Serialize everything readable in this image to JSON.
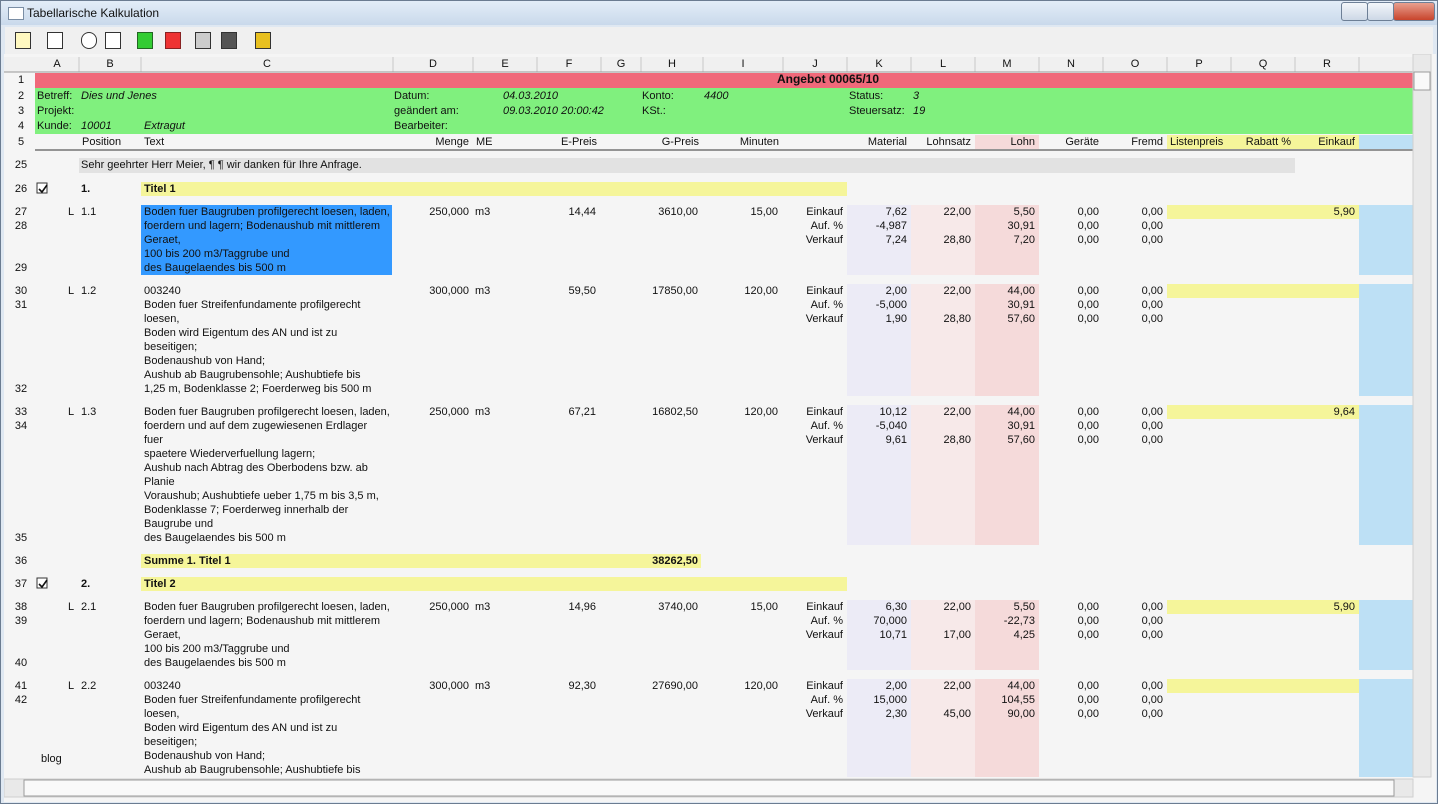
{
  "window": {
    "title": "Tabellarische Kalkulation"
  },
  "columns": [
    "A",
    "B",
    "C",
    "D",
    "E",
    "F",
    "G",
    "H",
    "I",
    "J",
    "K",
    "L",
    "M",
    "N",
    "O",
    "P",
    "Q",
    "R"
  ],
  "head": {
    "row_numbers": [
      "1",
      "2",
      "3",
      "4",
      "5"
    ],
    "offer": "Angebot 00065/10",
    "info": [
      [
        {
          "label": "Betreff:",
          "value": "Dies und Jenes"
        },
        {
          "label": "Datum:",
          "value": "04.03.2010"
        },
        {
          "label": "Konto:",
          "value": "4400"
        },
        {
          "label": "Status:",
          "value": "3"
        }
      ],
      [
        {
          "label": "Projekt:"
        },
        {
          "label": "geändert am:",
          "value": "09.03.2010 20:00:42"
        },
        {
          "label": "KSt.:"
        },
        {
          "label": "Steuersatz:",
          "value": "19"
        }
      ],
      [
        {
          "label": "Kunde:",
          "value": "10001",
          "extra": "Extragut"
        },
        {
          "label": "Bearbeiter:"
        }
      ]
    ],
    "column_titles": {
      "B": "Position",
      "C": "Text",
      "D": "Menge",
      "E": "ME",
      "F": "E-Preis",
      "H": "G-Preis",
      "I": "Minuten",
      "K": "Material",
      "L": "Lohnsatz",
      "M": "Lohn",
      "N": "Geräte",
      "O": "Fremd",
      "P": "Listenpreis",
      "Q": "Rabatt %",
      "R": "Einkauf"
    }
  },
  "intro": {
    "row_number": "25",
    "text": "Sehr geehrter Herr Meier, ¶ ¶ wir danken für Ihre Anfrage."
  },
  "blocks": [
    {
      "type": "title",
      "row_number": "26",
      "checked": true,
      "number": "1.",
      "text": "Titel 1"
    },
    {
      "type": "item",
      "row_numbers": [
        "27",
        "28"
      ],
      "last_row_number": "29",
      "marker": "L",
      "position": "1.1",
      "selected": true,
      "text": [
        "Boden fuer Baugruben profilgerecht loesen, laden,",
        "foerdern und lagern; Bodenaushub mit mittlerem",
        "Geraet,",
        "100 bis 200 m3/Taggrube und",
        "des Baugelaendes bis 500 m"
      ],
      "menge": "250,000",
      "me": "m3",
      "e_preis": "14,44",
      "g_preis": "3610,00",
      "minuten": "15,00",
      "calc": [
        {
          "label": "Einkauf",
          "K": "7,62",
          "L": "22,00",
          "M": "5,50",
          "N": "0,00",
          "O": "0,00"
        },
        {
          "label": "Auf. %",
          "K": "-4,987",
          "M": "30,91",
          "N": "0,00",
          "O": "0,00"
        },
        {
          "label": "Verkauf",
          "K": "7,24",
          "L": "28,80",
          "M": "7,20",
          "N": "0,00",
          "O": "0,00"
        }
      ],
      "einkauf": "5,90"
    },
    {
      "type": "item",
      "row_numbers": [
        "30",
        "31"
      ],
      "last_row_number": "32",
      "marker": "L",
      "position": "1.2",
      "selected": false,
      "text": [
        "003240",
        "Boden fuer Streifenfundamente profilgerecht",
        "loesen,",
        "Boden wird Eigentum des AN und ist zu",
        "beseitigen;",
        "Bodenaushub von Hand;",
        "Aushub ab Baugrubensohle; Aushubtiefe bis",
        "1,25 m, Bodenklasse 2; Foerderweg bis 500 m"
      ],
      "menge": "300,000",
      "me": "m3",
      "e_preis": "59,50",
      "g_preis": "17850,00",
      "minuten": "120,00",
      "calc": [
        {
          "label": "Einkauf",
          "K": "2,00",
          "L": "22,00",
          "M": "44,00",
          "N": "0,00",
          "O": "0,00"
        },
        {
          "label": "Auf. %",
          "K": "-5,000",
          "M": "30,91",
          "N": "0,00",
          "O": "0,00"
        },
        {
          "label": "Verkauf",
          "K": "1,90",
          "L": "28,80",
          "M": "57,60",
          "N": "0,00",
          "O": "0,00"
        }
      ]
    },
    {
      "type": "item",
      "row_numbers": [
        "33",
        "34"
      ],
      "last_row_number": "35",
      "marker": "L",
      "position": "1.3",
      "selected": false,
      "text": [
        "Boden fuer Baugruben profilgerecht loesen, laden,",
        "foerdern und auf dem zugewiesenen Erdlager",
        "fuer",
        "spaetere Wiederverfuellung lagern;",
        "Aushub nach Abtrag des Oberbodens bzw. ab",
        "Planie",
        "Voraushub; Aushubtiefe ueber 1,75 m bis 3,5 m,",
        "Bodenklasse 7; Foerderweg innerhalb der",
        "Baugrube und",
        "des Baugelaendes bis 500 m"
      ],
      "menge": "250,000",
      "me": "m3",
      "e_preis": "67,21",
      "g_preis": "16802,50",
      "minuten": "120,00",
      "calc": [
        {
          "label": "Einkauf",
          "K": "10,12",
          "L": "22,00",
          "M": "44,00",
          "N": "0,00",
          "O": "0,00"
        },
        {
          "label": "Auf. %",
          "K": "-5,040",
          "M": "30,91",
          "N": "0,00",
          "O": "0,00"
        },
        {
          "label": "Verkauf",
          "K": "9,61",
          "L": "28,80",
          "M": "57,60",
          "N": "0,00",
          "O": "0,00"
        }
      ],
      "einkauf": "9,64"
    },
    {
      "type": "sum",
      "row_number": "36",
      "text": "Summe 1. Titel 1",
      "value": "38262,50"
    },
    {
      "type": "title",
      "row_number": "37",
      "checked": true,
      "number": "2.",
      "text": "Titel 2"
    },
    {
      "type": "item",
      "row_numbers": [
        "38",
        "39"
      ],
      "last_row_number": "40",
      "marker": "L",
      "position": "2.1",
      "selected": false,
      "text": [
        "Boden fuer Baugruben profilgerecht loesen, laden,",
        "foerdern und lagern; Bodenaushub mit mittlerem",
        "Geraet,",
        "100 bis 200 m3/Taggrube und",
        "des Baugelaendes bis 500 m"
      ],
      "menge": "250,000",
      "me": "m3",
      "e_preis": "14,96",
      "g_preis": "3740,00",
      "minuten": "15,00",
      "calc": [
        {
          "label": "Einkauf",
          "K": "6,30",
          "L": "22,00",
          "M": "5,50",
          "N": "0,00",
          "O": "0,00"
        },
        {
          "label": "Auf. %",
          "K": "70,000",
          "M": "-22,73",
          "N": "0,00",
          "O": "0,00"
        },
        {
          "label": "Verkauf",
          "K": "10,71",
          "L": "17,00",
          "M": "4,25",
          "N": "0,00",
          "O": "0,00"
        }
      ],
      "einkauf": "5,90"
    },
    {
      "type": "item",
      "row_numbers": [
        "41",
        "42"
      ],
      "marker": "L",
      "position": "2.2",
      "selected": false,
      "text": [
        "003240",
        "Boden fuer Streifenfundamente profilgerecht",
        "loesen,",
        "Boden wird Eigentum des AN und ist zu",
        "beseitigen;",
        "Bodenaushub von Hand;",
        "Aushub ab Baugrubensohle; Aushubtiefe bis"
      ],
      "menge": "300,000",
      "me": "m3",
      "e_preis": "92,30",
      "g_preis": "27690,00",
      "minuten": "120,00",
      "calc": [
        {
          "label": "Einkauf",
          "K": "2,00",
          "L": "22,00",
          "M": "44,00",
          "N": "0,00",
          "O": "0,00"
        },
        {
          "label": "Auf. %",
          "K": "15,000",
          "M": "104,55",
          "N": "0,00",
          "O": "0,00"
        },
        {
          "label": "Verkauf",
          "K": "2,30",
          "L": "45,00",
          "M": "90,00",
          "N": "0,00",
          "O": "0,00"
        }
      ]
    }
  ],
  "watermark": "blog"
}
